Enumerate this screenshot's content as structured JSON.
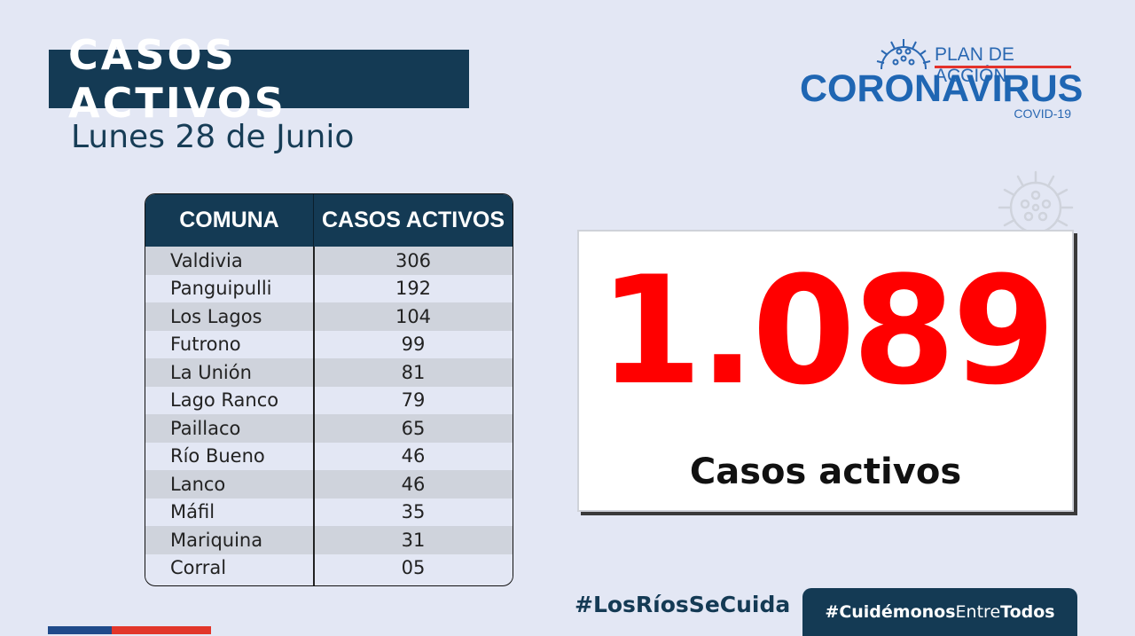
{
  "header": {
    "title": "CASOS ACTIVOS",
    "date": "Lunes 28 de Junio"
  },
  "logo": {
    "line1": "PLAN DE ACCIÓN",
    "line2": "CORONAVIRUS",
    "line3": "COVID-19"
  },
  "table": {
    "headers": [
      "COMUNA",
      "CASOS ACTIVOS"
    ],
    "rows": [
      {
        "comuna": "Valdivia",
        "casos": "306"
      },
      {
        "comuna": "Panguipulli",
        "casos": "192"
      },
      {
        "comuna": "Los Lagos",
        "casos": "104"
      },
      {
        "comuna": "Futrono",
        "casos": "99"
      },
      {
        "comuna": "La Unión",
        "casos": "81"
      },
      {
        "comuna": "Lago Ranco",
        "casos": "79"
      },
      {
        "comuna": "Paillaco",
        "casos": "65"
      },
      {
        "comuna": "Río Bueno",
        "casos": "46"
      },
      {
        "comuna": "Lanco",
        "casos": "46"
      },
      {
        "comuna": "Máfil",
        "casos": "35"
      },
      {
        "comuna": "Mariquina",
        "casos": "31"
      },
      {
        "comuna": "Corral",
        "casos": "05"
      }
    ]
  },
  "total": {
    "value": "1.089",
    "label": "Casos activos"
  },
  "footer": {
    "hashtag1": "#LosRíosSeCuida",
    "hashtag2_part1": "#Cuidémonos",
    "hashtag2_part2": "Entre",
    "hashtag2_part3": "Todos"
  },
  "colors": {
    "navy": "#143a54",
    "accent_red": "#ff0000",
    "logo_blue": "#1f66b3",
    "background": "#e3e7f4"
  },
  "icons": [
    "coronavirus-icon"
  ]
}
